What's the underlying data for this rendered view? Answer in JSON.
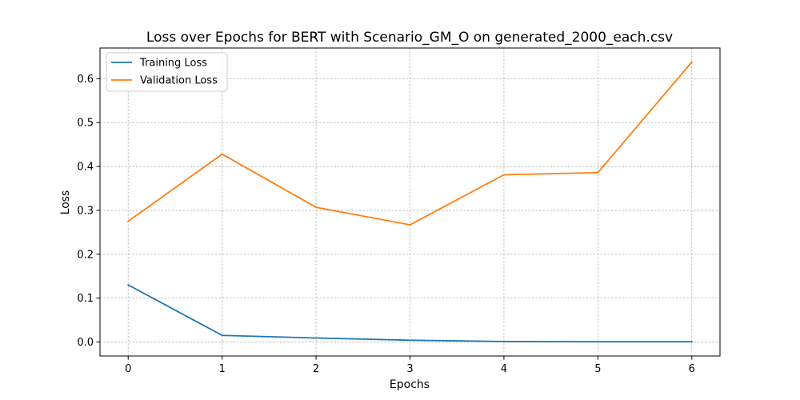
{
  "chart_data": {
    "type": "line",
    "title": "Loss over Epochs for BERT with Scenario_GM_O on generated_2000_each.csv",
    "xlabel": "Epochs",
    "ylabel": "Loss",
    "x": [
      0,
      1,
      2,
      3,
      4,
      5,
      6
    ],
    "x_ticks": [
      "0",
      "1",
      "2",
      "3",
      "4",
      "5",
      "6"
    ],
    "y_ticks": [
      "0.0",
      "0.1",
      "0.2",
      "0.3",
      "0.4",
      "0.5",
      "0.6"
    ],
    "xlim": [
      -0.3,
      6.3
    ],
    "ylim": [
      -0.032,
      0.67
    ],
    "grid": true,
    "legend_position": "top-left",
    "series": [
      {
        "name": "Training Loss",
        "color": "#1f77b4",
        "values": [
          0.13,
          0.015,
          0.009,
          0.004,
          0.001,
          0.0005,
          0.0005
        ]
      },
      {
        "name": "Validation Loss",
        "color": "#ff7f0e",
        "values": [
          0.275,
          0.428,
          0.307,
          0.267,
          0.381,
          0.386,
          0.638
        ]
      }
    ]
  }
}
